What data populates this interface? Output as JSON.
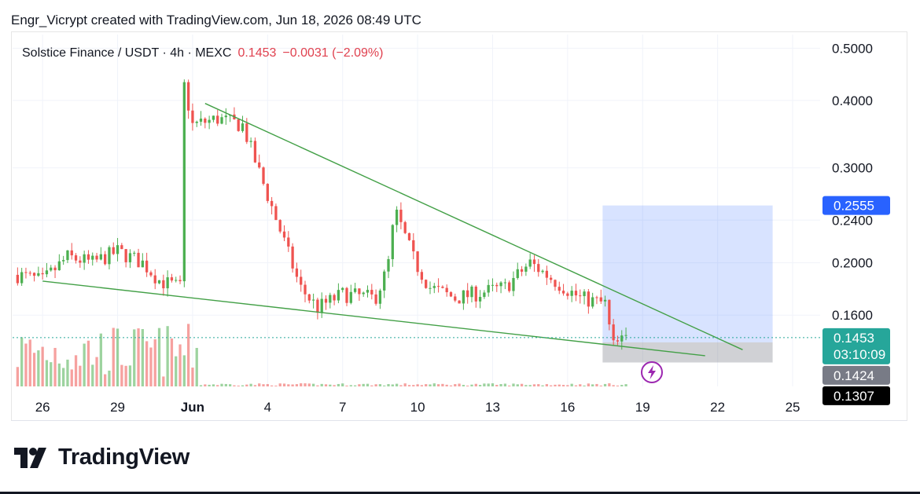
{
  "header": {
    "attribution": "Engr_Vicrypt created with TradingView.com, Jun 18, 2026 08:49 UTC"
  },
  "legend": {
    "symbol": "Solstice Finance / USDT · 4h · MEXC",
    "price": "0.1453",
    "change": "−0.0031 (−2.09%)"
  },
  "branding": {
    "logo": "TradingView"
  },
  "chart_data": {
    "type": "candlestick",
    "title": "Solstice Finance / USDT",
    "scale": "log",
    "ylim": [
      0.118,
      0.53
    ],
    "y_ticks": [
      "0.5000",
      "0.4000",
      "0.3000",
      "0.2400",
      "0.2000",
      "0.1600"
    ],
    "x_ticks": [
      "26",
      "29",
      "Jun",
      "4",
      "7",
      "10",
      "13",
      "16",
      "19",
      "22",
      "25"
    ],
    "x_tick_days": [
      -5,
      -2,
      1,
      4,
      7,
      10,
      13,
      16,
      19,
      22,
      25
    ],
    "x_range_days": [
      -6.2,
      26.1
    ],
    "price_labels": [
      {
        "name": "target",
        "value": 0.2555,
        "text": "0.2555",
        "color": "#2962ff"
      },
      {
        "name": "current",
        "value": 0.1453,
        "text": "0.1453",
        "sub": "03:10:09",
        "color": "#26a69a"
      },
      {
        "name": "entry",
        "value": 0.1424,
        "text": "0.1424",
        "color": "#787b86"
      },
      {
        "name": "stop",
        "value": 0.1307,
        "text": "0.1307",
        "color": "#000000"
      }
    ],
    "anchors": [
      {
        "day": -6.0,
        "price": 0.19
      },
      {
        "day": -5.0,
        "price": 0.185
      },
      {
        "day": -4.0,
        "price": 0.205
      },
      {
        "day": -3.0,
        "price": 0.2
      },
      {
        "day": -2.0,
        "price": 0.21
      },
      {
        "day": -1.0,
        "price": 0.2
      },
      {
        "day": -0.3,
        "price": 0.185
      },
      {
        "day": 0.5,
        "price": 0.18
      },
      {
        "day": 0.6,
        "price": 0.44
      },
      {
        "day": 1.0,
        "price": 0.36
      },
      {
        "day": 2.0,
        "price": 0.37
      },
      {
        "day": 3.0,
        "price": 0.36
      },
      {
        "day": 3.6,
        "price": 0.3
      },
      {
        "day": 4.5,
        "price": 0.23
      },
      {
        "day": 5.3,
        "price": 0.18
      },
      {
        "day": 6.0,
        "price": 0.165
      },
      {
        "day": 7.0,
        "price": 0.175
      },
      {
        "day": 8.3,
        "price": 0.172
      },
      {
        "day": 8.8,
        "price": 0.195
      },
      {
        "day": 9.1,
        "price": 0.25
      },
      {
        "day": 9.9,
        "price": 0.2
      },
      {
        "day": 10.5,
        "price": 0.18
      },
      {
        "day": 11.5,
        "price": 0.172
      },
      {
        "day": 12.5,
        "price": 0.176
      },
      {
        "day": 13.5,
        "price": 0.18
      },
      {
        "day": 14.5,
        "price": 0.2
      },
      {
        "day": 15.5,
        "price": 0.185
      },
      {
        "day": 16.5,
        "price": 0.172
      },
      {
        "day": 17.5,
        "price": 0.168
      },
      {
        "day": 17.8,
        "price": 0.14
      },
      {
        "day": 18.4,
        "price": 0.145
      }
    ],
    "trendlines": [
      {
        "name": "upper",
        "from": {
          "day": 1.5,
          "price": 0.395
        },
        "to": {
          "day": 23.0,
          "price": 0.138
        }
      },
      {
        "name": "lower",
        "from": {
          "day": -5.0,
          "price": 0.185
        },
        "to": {
          "day": 21.5,
          "price": 0.1345
        }
      }
    ],
    "position": {
      "from_day": 17.4,
      "to_day": 24.2,
      "target": 0.2555,
      "entry": 0.1424,
      "stop": 0.1307
    }
  }
}
